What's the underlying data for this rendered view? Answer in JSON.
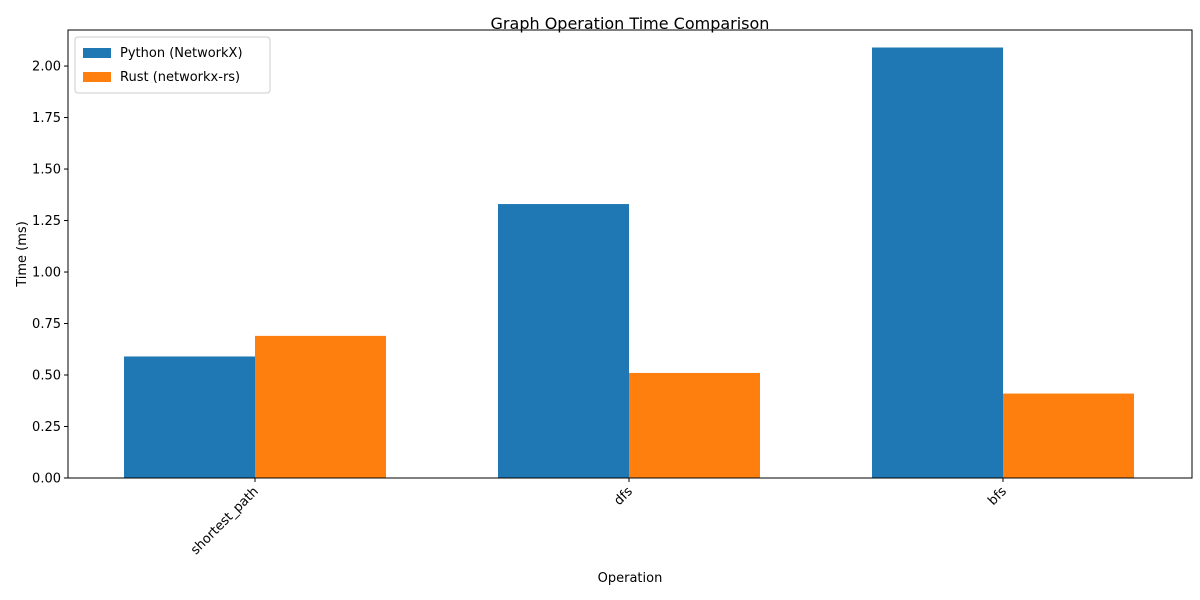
{
  "chart_data": {
    "type": "bar",
    "title": "Graph Operation Time Comparison",
    "xlabel": "Operation",
    "ylabel": "Time (ms)",
    "categories": [
      "shortest_path",
      "dfs",
      "bfs"
    ],
    "series": [
      {
        "name": "Python (NetworkX)",
        "color": "#1f77b4",
        "values": [
          0.59,
          1.33,
          2.09
        ]
      },
      {
        "name": "Rust (networkx-rs)",
        "color": "#ff7f0e",
        "values": [
          0.69,
          0.51,
          0.41
        ]
      }
    ],
    "ylim": [
      0,
      2.175
    ],
    "yticks": [
      "0.00",
      "0.25",
      "0.50",
      "0.75",
      "1.00",
      "1.25",
      "1.50",
      "1.75",
      "2.00"
    ],
    "grid": false,
    "legend_position": "top-left",
    "x_tick_rotation": 45
  }
}
